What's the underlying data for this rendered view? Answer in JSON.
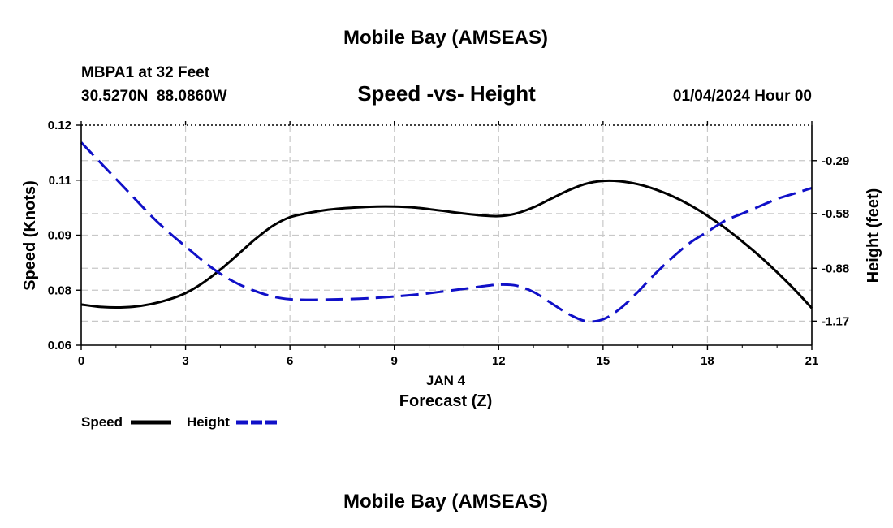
{
  "page": {
    "title_top": "Mobile Bay (AMSEAS)",
    "title_bottom": "Mobile Bay (AMSEAS)",
    "station": "MBPA1 at 32 Feet",
    "coords": "30.5270N  88.0860W",
    "date": "01/04/2024 Hour 00"
  },
  "chart_data": {
    "type": "line",
    "title": "Speed -vs- Height",
    "xlabel": "Forecast (Z)",
    "xlabel_date": "JAN 4",
    "ylabel_left": "Speed (Knots)",
    "ylabel_right": "Height (feet)",
    "xlim": [
      0,
      21
    ],
    "x_ticks": [
      "0",
      "3",
      "6",
      "9",
      "12",
      "15",
      "18",
      "21"
    ],
    "x_tick_values": [
      0,
      3,
      6,
      9,
      12,
      15,
      18,
      21
    ],
    "ylim_left": [
      0.06,
      0.12
    ],
    "y_left_ticks": [
      "0.06",
      "0.08",
      "0.09",
      "0.11",
      "0.12"
    ],
    "y_left_tick_values": [
      0.06,
      0.075,
      0.09,
      0.105,
      0.12
    ],
    "ylim_right": [
      -1.302,
      -0.095
    ],
    "y_right_ticks": [
      "-0.29",
      "-0.58",
      "-0.88",
      "-1.17"
    ],
    "y_right_tick_values": [
      -0.29,
      -0.58,
      -0.88,
      -1.17
    ],
    "grid": true,
    "legend_position": "bottom-left",
    "series": [
      {
        "name": "Speed",
        "axis": "left",
        "color": "#000000",
        "style": "solid",
        "x": [
          0,
          0.5,
          1,
          1.5,
          2,
          2.5,
          3,
          3.5,
          4,
          4.5,
          5,
          5.5,
          6,
          6.5,
          7,
          7.5,
          8,
          8.5,
          9,
          9.5,
          10,
          10.5,
          11,
          11.5,
          12,
          12.5,
          13,
          13.5,
          14,
          14.5,
          15,
          15.5,
          16,
          16.5,
          17,
          17.5,
          18,
          18.5,
          19,
          19.5,
          20,
          20.5,
          21
        ],
        "values": [
          0.0711,
          0.0705,
          0.0703,
          0.0705,
          0.0712,
          0.0724,
          0.0742,
          0.077,
          0.0806,
          0.0847,
          0.0889,
          0.0925,
          0.0949,
          0.096,
          0.0968,
          0.0973,
          0.0976,
          0.0978,
          0.0978,
          0.0976,
          0.0971,
          0.0965,
          0.0959,
          0.0954,
          0.0952,
          0.0959,
          0.0976,
          0.0999,
          0.1022,
          0.104,
          0.1048,
          0.1047,
          0.1039,
          0.1025,
          0.1006,
          0.0982,
          0.0953,
          0.092,
          0.0883,
          0.0843,
          0.0799,
          0.0752,
          0.0701
        ]
      },
      {
        "name": "Height",
        "axis": "right",
        "color": "#1010c8",
        "style": "dashed",
        "x": [
          0,
          0.5,
          1,
          1.5,
          2,
          2.5,
          3,
          3.5,
          4,
          4.5,
          5,
          5.5,
          6,
          6.5,
          7,
          7.5,
          8,
          8.5,
          9,
          9.5,
          10,
          10.5,
          11,
          11.5,
          12,
          12.5,
          13,
          13.5,
          14,
          14.5,
          15,
          15.5,
          16,
          16.5,
          17,
          17.5,
          18,
          18.5,
          19,
          19.5,
          20,
          20.5,
          21
        ],
        "values": [
          -0.19,
          -0.29,
          -0.39,
          -0.49,
          -0.59,
          -0.68,
          -0.76,
          -0.84,
          -0.91,
          -0.965,
          -1.005,
          -1.035,
          -1.05,
          -1.053,
          -1.052,
          -1.05,
          -1.047,
          -1.042,
          -1.035,
          -1.027,
          -1.017,
          -1.005,
          -0.993,
          -0.98,
          -0.97,
          -0.975,
          -1.01,
          -1.07,
          -1.13,
          -1.17,
          -1.16,
          -1.1,
          -1.01,
          -0.91,
          -0.82,
          -0.74,
          -0.68,
          -0.62,
          -0.58,
          -0.54,
          -0.5,
          -0.47,
          -0.44
        ]
      }
    ]
  }
}
